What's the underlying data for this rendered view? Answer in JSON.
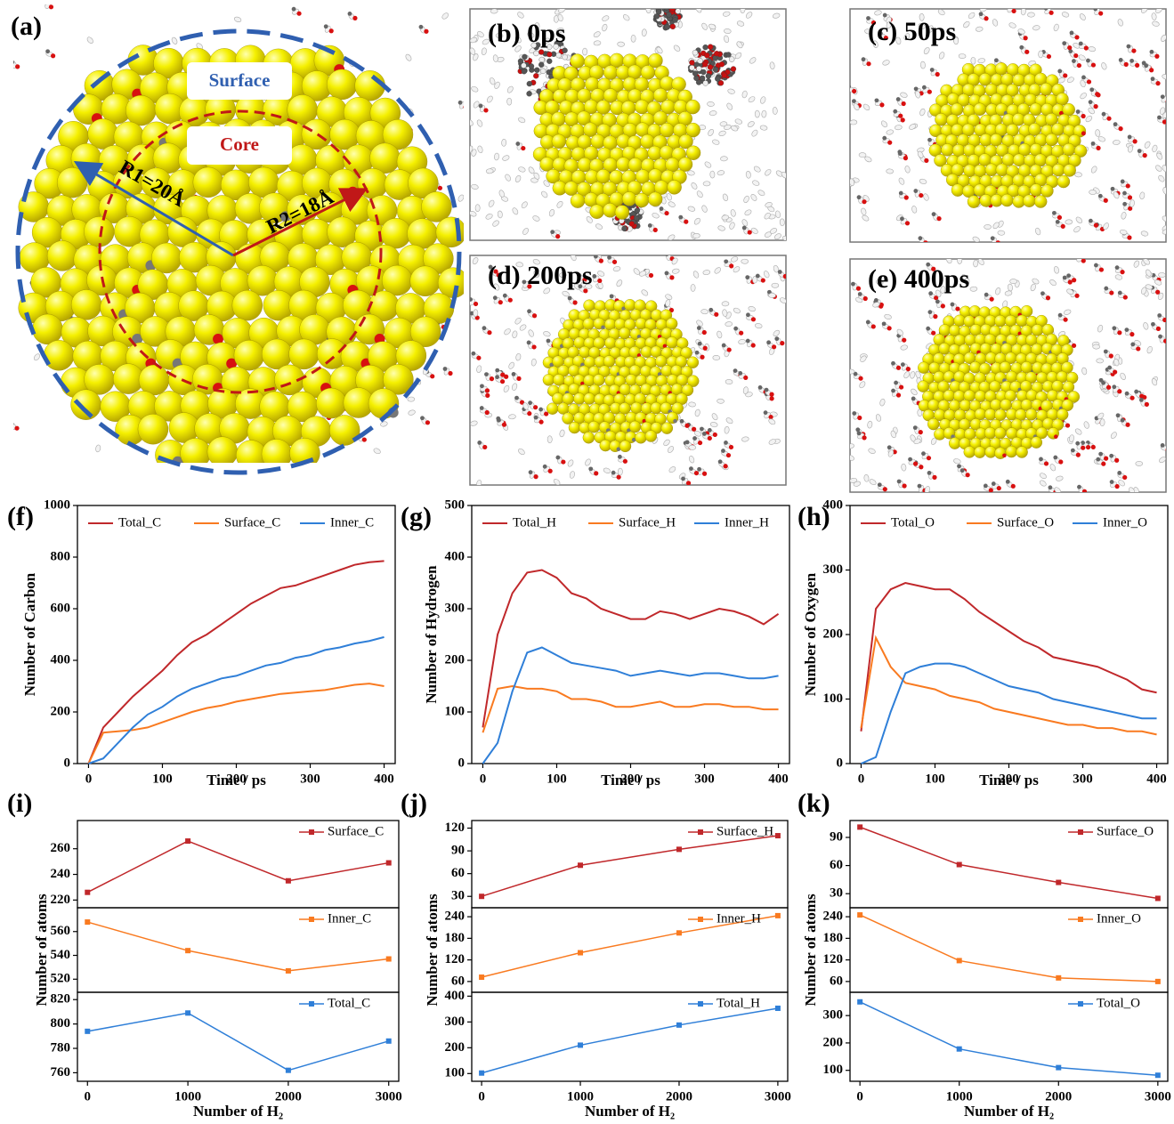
{
  "figure": {
    "panel_a": {
      "label": "(a)",
      "surface": "Surface",
      "core": "Core",
      "r1": "R1=20Å",
      "r2": "R2=18Å"
    },
    "snapshots": [
      {
        "label": "(b) 0ps"
      },
      {
        "label": "(c) 50ps"
      },
      {
        "label": "(d) 200ps"
      },
      {
        "label": "(e) 400ps"
      }
    ]
  },
  "chart_data": [
    {
      "type": "line",
      "label": "(f)",
      "xlabel": "Time / ps",
      "ylabel": "Number of Carbon",
      "x": [
        0,
        20,
        40,
        60,
        80,
        100,
        120,
        140,
        160,
        180,
        200,
        220,
        240,
        260,
        280,
        300,
        320,
        340,
        360,
        380,
        400
      ],
      "xlim": [
        -15,
        415
      ],
      "xticks": [
        0,
        100,
        200,
        300,
        400
      ],
      "ylim": [
        0,
        1000
      ],
      "yticks": [
        0,
        200,
        400,
        600,
        800,
        1000
      ],
      "series": [
        {
          "name": "Total_C",
          "color": "#c0282b",
          "values": [
            0,
            140,
            200,
            260,
            310,
            360,
            420,
            470,
            500,
            540,
            580,
            620,
            650,
            680,
            690,
            710,
            730,
            750,
            770,
            780,
            785
          ]
        },
        {
          "name": "Surface_C",
          "color": "#f97a20",
          "values": [
            0,
            120,
            125,
            130,
            140,
            160,
            180,
            200,
            215,
            225,
            240,
            250,
            260,
            270,
            275,
            280,
            285,
            295,
            305,
            310,
            300
          ]
        },
        {
          "name": "Inner_C",
          "color": "#2f7fd8",
          "values": [
            0,
            20,
            80,
            140,
            190,
            220,
            260,
            290,
            310,
            330,
            340,
            360,
            380,
            390,
            410,
            420,
            440,
            450,
            465,
            475,
            490
          ]
        }
      ]
    },
    {
      "type": "line",
      "label": "(g)",
      "xlabel": "Time / ps",
      "ylabel": "Number of Hydrogen",
      "x": [
        0,
        20,
        40,
        60,
        80,
        100,
        120,
        140,
        160,
        180,
        200,
        220,
        240,
        260,
        280,
        300,
        320,
        340,
        360,
        380,
        400
      ],
      "xlim": [
        -15,
        415
      ],
      "xticks": [
        0,
        100,
        200,
        300,
        400
      ],
      "ylim": [
        0,
        500
      ],
      "yticks": [
        0,
        100,
        200,
        300,
        400,
        500
      ],
      "series": [
        {
          "name": "Total_H",
          "color": "#c0282b",
          "values": [
            70,
            250,
            330,
            370,
            375,
            360,
            330,
            320,
            300,
            290,
            280,
            280,
            295,
            290,
            280,
            290,
            300,
            295,
            285,
            270,
            290
          ]
        },
        {
          "name": "Surface_H",
          "color": "#f97a20",
          "values": [
            60,
            145,
            150,
            145,
            145,
            140,
            125,
            125,
            120,
            110,
            110,
            115,
            120,
            110,
            110,
            115,
            115,
            110,
            110,
            105,
            105
          ]
        },
        {
          "name": "Inner_H",
          "color": "#2f7fd8",
          "values": [
            0,
            40,
            140,
            215,
            225,
            210,
            195,
            190,
            185,
            180,
            170,
            175,
            180,
            175,
            170,
            175,
            175,
            170,
            165,
            165,
            170
          ]
        }
      ]
    },
    {
      "type": "line",
      "label": "(h)",
      "xlabel": "Time / ps",
      "ylabel": "Number of Oxygen",
      "x": [
        0,
        20,
        40,
        60,
        80,
        100,
        120,
        140,
        160,
        180,
        200,
        220,
        240,
        260,
        280,
        300,
        320,
        340,
        360,
        380,
        400
      ],
      "xlim": [
        -15,
        415
      ],
      "xticks": [
        0,
        100,
        200,
        300,
        400
      ],
      "ylim": [
        0,
        400
      ],
      "yticks": [
        0,
        100,
        200,
        300,
        400
      ],
      "series": [
        {
          "name": "Total_O",
          "color": "#c0282b",
          "values": [
            50,
            240,
            270,
            280,
            275,
            270,
            270,
            255,
            235,
            220,
            205,
            190,
            180,
            165,
            160,
            155,
            150,
            140,
            130,
            115,
            110
          ]
        },
        {
          "name": "Surface_O",
          "color": "#f97a20",
          "values": [
            55,
            195,
            150,
            125,
            120,
            115,
            105,
            100,
            95,
            85,
            80,
            75,
            70,
            65,
            60,
            60,
            55,
            55,
            50,
            50,
            45
          ]
        },
        {
          "name": "Inner_O",
          "color": "#2f7fd8",
          "values": [
            0,
            10,
            80,
            140,
            150,
            155,
            155,
            150,
            140,
            130,
            120,
            115,
            110,
            100,
            95,
            90,
            85,
            80,
            75,
            70,
            70
          ]
        }
      ]
    },
    {
      "type": "line",
      "markers": true,
      "label": "(i)",
      "x": [
        0,
        1000,
        2000,
        3000
      ],
      "xlim": [
        -100,
        3100
      ],
      "ylim": [
        214,
        282
      ],
      "yticks": [
        220,
        240,
        260
      ],
      "series": [
        {
          "name": "Surface_C",
          "color": "#c0282b",
          "values": [
            226,
            266,
            235,
            249
          ]
        }
      ]
    },
    {
      "type": "line",
      "markers": true,
      "ylabel": "Number of atoms",
      "x": [
        0,
        1000,
        2000,
        3000
      ],
      "xlim": [
        -100,
        3100
      ],
      "ylim": [
        509,
        580
      ],
      "yticks": [
        520,
        540,
        560
      ],
      "series": [
        {
          "name": "Inner_C",
          "color": "#f97a20",
          "values": [
            568,
            544,
            527,
            537
          ]
        }
      ]
    },
    {
      "type": "line",
      "markers": true,
      "xlabel": "Number of H₂",
      "x": [
        0,
        1000,
        2000,
        3000
      ],
      "xlim": [
        -100,
        3100
      ],
      "xticks": [
        0,
        1000,
        2000,
        3000
      ],
      "ylim": [
        753,
        826
      ],
      "yticks": [
        760,
        780,
        800,
        820
      ],
      "series": [
        {
          "name": "Total_C",
          "color": "#2f7fd8",
          "values": [
            794,
            809,
            762,
            786
          ]
        }
      ]
    },
    {
      "type": "line",
      "markers": true,
      "label": "(j)",
      "x": [
        0,
        1000,
        2000,
        3000
      ],
      "xlim": [
        -100,
        3100
      ],
      "ylim": [
        15,
        130
      ],
      "yticks": [
        30,
        60,
        90,
        120
      ],
      "series": [
        {
          "name": "Surface_H",
          "color": "#c0282b",
          "values": [
            30,
            71,
            92,
            110
          ]
        }
      ]
    },
    {
      "type": "line",
      "markers": true,
      "ylabel": "Number of atoms",
      "x": [
        0,
        1000,
        2000,
        3000
      ],
      "xlim": [
        -100,
        3100
      ],
      "ylim": [
        30,
        265
      ],
      "yticks": [
        60,
        120,
        180,
        240
      ],
      "series": [
        {
          "name": "Inner_H",
          "color": "#f97a20",
          "values": [
            72,
            140,
            195,
            243
          ]
        }
      ]
    },
    {
      "type": "line",
      "markers": true,
      "xlabel": "Number of H₂",
      "x": [
        0,
        1000,
        2000,
        3000
      ],
      "xlim": [
        -100,
        3100
      ],
      "xticks": [
        0,
        1000,
        2000,
        3000
      ],
      "ylim": [
        70,
        415
      ],
      "yticks": [
        100,
        200,
        300,
        400
      ],
      "series": [
        {
          "name": "Total_H",
          "color": "#2f7fd8",
          "values": [
            102,
            210,
            288,
            353
          ]
        }
      ]
    },
    {
      "type": "line",
      "markers": true,
      "label": "(k)",
      "x": [
        0,
        1000,
        2000,
        3000
      ],
      "xlim": [
        -100,
        3100
      ],
      "ylim": [
        15,
        108
      ],
      "yticks": [
        30,
        60,
        90
      ],
      "series": [
        {
          "name": "Surface_O",
          "color": "#c0282b",
          "values": [
            101,
            61,
            42,
            25
          ]
        }
      ]
    },
    {
      "type": "line",
      "markers": true,
      "ylabel": "Number of atoms",
      "x": [
        0,
        1000,
        2000,
        3000
      ],
      "xlim": [
        -100,
        3100
      ],
      "ylim": [
        30,
        265
      ],
      "yticks": [
        60,
        120,
        180,
        240
      ],
      "series": [
        {
          "name": "Inner_O",
          "color": "#f97a20",
          "values": [
            245,
            118,
            70,
            60
          ]
        }
      ]
    },
    {
      "type": "line",
      "markers": true,
      "xlabel": "Number of H₂",
      "x": [
        0,
        1000,
        2000,
        3000
      ],
      "xlim": [
        -100,
        3100
      ],
      "xticks": [
        0,
        1000,
        2000,
        3000
      ],
      "ylim": [
        60,
        385
      ],
      "yticks": [
        100,
        200,
        300
      ],
      "series": [
        {
          "name": "Total_O",
          "color": "#2f7fd8",
          "values": [
            350,
            178,
            110,
            82
          ]
        }
      ]
    }
  ]
}
